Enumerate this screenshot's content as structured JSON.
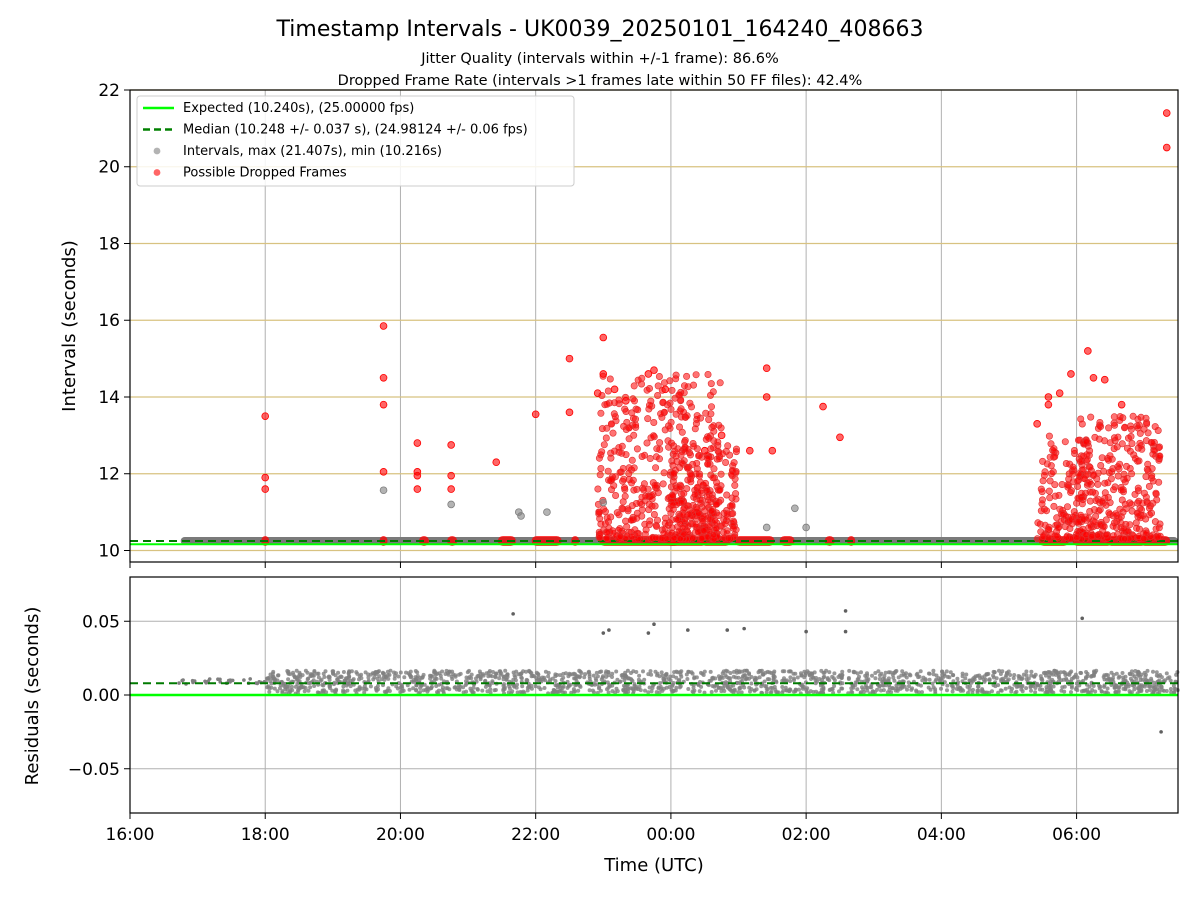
{
  "header": {
    "title": "Timestamp Intervals - UK0039_20250101_164240_408663",
    "subtitle1": "Jitter Quality (intervals within +/-1 frame): 86.6%",
    "subtitle2": "Dropped Frame Rate (intervals >1 frames late within 50 FF files): 42.4%"
  },
  "chart_data": [
    {
      "type": "scatter",
      "name": "intervals",
      "ylabel": "Intervals (seconds)",
      "ylim": [
        9.7,
        22
      ],
      "yticks": [
        "10",
        "12",
        "14",
        "16",
        "18",
        "20",
        "22"
      ],
      "grid": true,
      "legend_position": "top-left",
      "legend": [
        {
          "label": "Expected (10.240s), (25.00000 fps)",
          "color": "#00ff00",
          "style": "solid-line"
        },
        {
          "label": "Median (10.248 +/- 0.037 s), (24.98124 +/- 0.06 fps)",
          "color": "#008000",
          "style": "dashed-line"
        },
        {
          "label": "Intervals, max (21.407s), min (10.216s)",
          "color": "#808080",
          "style": "dot"
        },
        {
          "label": "Possible Dropped Frames",
          "color": "#ff0000",
          "style": "dot"
        }
      ],
      "expected_interval": 10.24,
      "median_interval": 10.248,
      "max_interval": 21.407,
      "min_interval": 10.216,
      "series": [
        {
          "name": "Intervals",
          "color": "#808080",
          "points": [
            [
              "19:45",
              11.57
            ],
            [
              "20:45",
              11.2
            ],
            [
              "21:45",
              11.0
            ],
            [
              "21:47",
              10.9
            ],
            [
              "22:10",
              11.0
            ],
            [
              "23:00",
              11.25
            ],
            [
              "01:25",
              10.6
            ],
            [
              "01:50",
              11.1
            ],
            [
              "02:00",
              10.6
            ]
          ]
        },
        {
          "name": "Possible Dropped Frames",
          "color": "#ff0000",
          "points": [
            [
              "18:00",
              13.5
            ],
            [
              "18:00",
              11.9
            ],
            [
              "18:00",
              11.6
            ],
            [
              "19:45",
              15.85
            ],
            [
              "19:45",
              14.5
            ],
            [
              "19:45",
              13.8
            ],
            [
              "19:45",
              12.05
            ],
            [
              "20:15",
              12.8
            ],
            [
              "20:15",
              12.05
            ],
            [
              "20:15",
              11.95
            ],
            [
              "20:15",
              11.6
            ],
            [
              "20:45",
              12.75
            ],
            [
              "20:45",
              11.95
            ],
            [
              "20:45",
              11.6
            ],
            [
              "21:25",
              12.3
            ],
            [
              "22:00",
              13.55
            ],
            [
              "22:30",
              15.0
            ],
            [
              "22:30",
              13.6
            ],
            [
              "22:55",
              14.1
            ],
            [
              "23:00",
              15.55
            ],
            [
              "23:00",
              14.6
            ],
            [
              "23:10",
              14.2
            ],
            [
              "23:20",
              13.9
            ],
            [
              "23:40",
              14.6
            ],
            [
              "23:45",
              14.7
            ],
            [
              "23:55",
              14.2
            ],
            [
              "00:30",
              12.6
            ],
            [
              "00:45",
              13.0
            ],
            [
              "01:10",
              12.6
            ],
            [
              "01:25",
              14.75
            ],
            [
              "01:25",
              14.0
            ],
            [
              "01:30",
              12.6
            ],
            [
              "02:15",
              13.75
            ],
            [
              "02:30",
              12.95
            ],
            [
              "05:25",
              13.3
            ],
            [
              "05:35",
              14.0
            ],
            [
              "05:35",
              13.8
            ],
            [
              "05:45",
              14.1
            ],
            [
              "05:55",
              14.6
            ],
            [
              "06:10",
              15.2
            ],
            [
              "06:15",
              14.5
            ],
            [
              "06:25",
              14.45
            ],
            [
              "06:40",
              13.8
            ],
            [
              "07:20",
              21.4
            ],
            [
              "07:20",
              20.5
            ]
          ]
        }
      ]
    },
    {
      "type": "scatter",
      "name": "residuals",
      "xlabel": "Time (UTC)",
      "ylabel": "Residuals (seconds)",
      "ylim": [
        -0.08,
        0.08
      ],
      "yticks": [
        "−0.05",
        "0.00",
        "0.05"
      ],
      "xlim": [
        "16:00",
        "07:30"
      ],
      "xticks": [
        "16:00",
        "18:00",
        "20:00",
        "22:00",
        "00:00",
        "02:00",
        "04:00",
        "06:00"
      ],
      "grid": true,
      "expected_residual": 0.0,
      "median_residual": 0.008,
      "series": [
        {
          "name": "Residuals",
          "color": "#808080",
          "points": [
            [
              "21:40",
              0.055
            ],
            [
              "23:00",
              0.042
            ],
            [
              "23:05",
              0.044
            ],
            [
              "23:40",
              0.042
            ],
            [
              "23:45",
              0.048
            ],
            [
              "00:15",
              0.044
            ],
            [
              "00:50",
              0.044
            ],
            [
              "01:05",
              0.045
            ],
            [
              "02:00",
              0.043
            ],
            [
              "02:35",
              0.057
            ],
            [
              "02:35",
              0.043
            ],
            [
              "06:05",
              0.052
            ],
            [
              "07:15",
              -0.025
            ]
          ]
        }
      ]
    }
  ]
}
